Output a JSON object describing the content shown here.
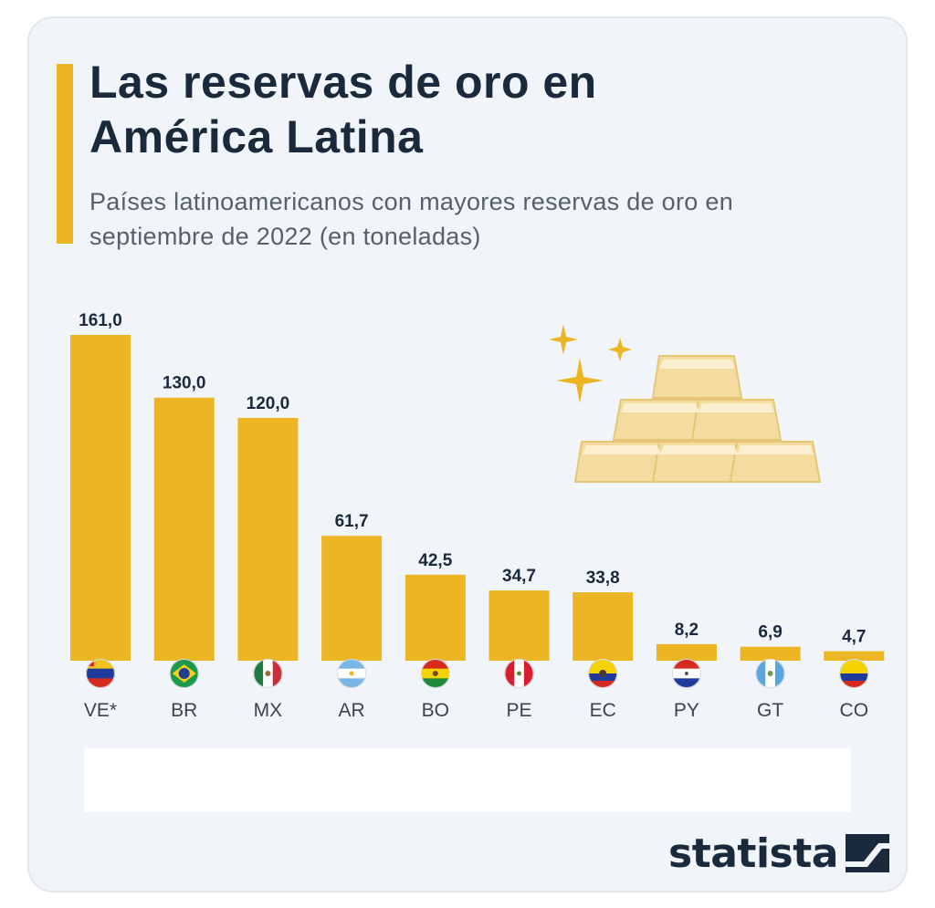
{
  "header": {
    "title": "Las reservas de oro en América Latina",
    "subtitle": "Países latinoamericanos con mayores reservas de oro en septiembre de 2022 (en toneladas)"
  },
  "brand": {
    "name": "statista"
  },
  "colors": {
    "bar": "#ecb524",
    "card_bg": "#f1f4f9",
    "title": "#1a2a3c",
    "subtitle": "#56606c"
  },
  "chart_data": {
    "type": "bar",
    "categories": [
      "VE*",
      "BR",
      "MX",
      "AR",
      "BO",
      "PE",
      "EC",
      "PY",
      "GT",
      "CO"
    ],
    "values": [
      161.0,
      130.0,
      120.0,
      61.7,
      42.5,
      34.7,
      33.8,
      8.2,
      6.9,
      4.7
    ],
    "value_labels": [
      "161,0",
      "130,0",
      "120,0",
      "61,7",
      "42,5",
      "34,7",
      "33,8",
      "8,2",
      "6,9",
      "4,7"
    ],
    "flag_icons": [
      "venezuela-flag-icon",
      "brazil-flag-icon",
      "mexico-flag-icon",
      "argentina-flag-icon",
      "bolivia-flag-icon",
      "peru-flag-icon",
      "ecuador-flag-icon",
      "paraguay-flag-icon",
      "guatemala-flag-icon",
      "colombia-flag-icon"
    ],
    "title": "Las reservas de oro en América Latina",
    "xlabel": "",
    "ylabel": "",
    "ylim": [
      0,
      161
    ],
    "grid": false,
    "legend": "none"
  }
}
